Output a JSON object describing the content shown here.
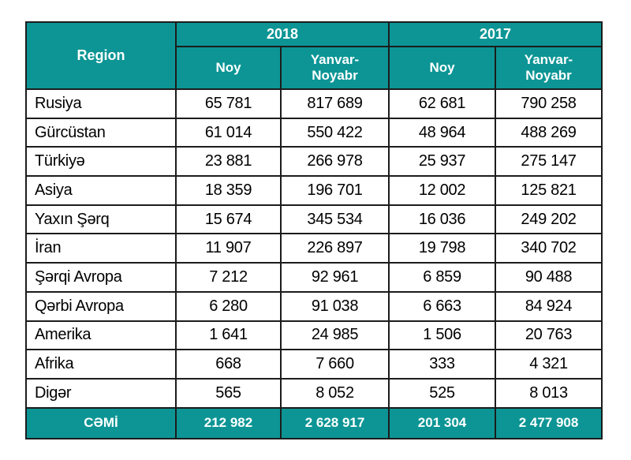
{
  "colors": {
    "header_bg": "#0D9595",
    "header_text": "#FFFFFF",
    "border": "#1C1C1C",
    "body_text": "#000000",
    "page_bg": "#FFFFFF"
  },
  "table": {
    "region_label": "Region",
    "year_groups": [
      {
        "year": "2018",
        "columns": [
          "Noy",
          "Yanvar-Noyabr"
        ]
      },
      {
        "year": "2017",
        "columns": [
          "Noy",
          "Yanvar-Noyabr"
        ]
      }
    ],
    "rows": [
      {
        "region": "Rusiya",
        "values": [
          "65 781",
          "817 689",
          "62 681",
          "790 258"
        ]
      },
      {
        "region": "Gürcüstan",
        "values": [
          "61 014",
          "550 422",
          "48 964",
          "488 269"
        ]
      },
      {
        "region": "Türkiyə",
        "values": [
          "23 881",
          "266 978",
          "25 937",
          "275 147"
        ]
      },
      {
        "region": "Asiya",
        "values": [
          "18 359",
          "196 701",
          "12 002",
          "125 821"
        ]
      },
      {
        "region": "Yaxın Şərq",
        "values": [
          "15 674",
          "345 534",
          "16 036",
          "249 202"
        ]
      },
      {
        "region": "İran",
        "values": [
          "11 907",
          "226 897",
          "19 798",
          "340 702"
        ]
      },
      {
        "region": "Şərqi Avropa",
        "values": [
          "7 212",
          "92 961",
          "6 859",
          "90 488"
        ]
      },
      {
        "region": "Qərbi Avropa",
        "values": [
          "6 280",
          "91 038",
          "6 663",
          "84 924"
        ]
      },
      {
        "region": "Amerika",
        "values": [
          "1 641",
          "24 985",
          "1 506",
          "20 763"
        ]
      },
      {
        "region": "Afrika",
        "values": [
          "668",
          "7 660",
          "333",
          "4 321"
        ]
      },
      {
        "region": "Digər",
        "values": [
          "565",
          "8 052",
          "525",
          "8 013"
        ]
      }
    ],
    "footer": {
      "label": "CƏMİ",
      "values": [
        "212 982",
        "2 628 917",
        "201 304",
        "2 477 908"
      ]
    }
  },
  "chart_data": {
    "type": "table",
    "title": "",
    "column_groups": [
      "2018",
      "2017"
    ],
    "columns": [
      "Region",
      "2018 Noy",
      "2018 Yanvar-Noyabr",
      "2017 Noy",
      "2017 Yanvar-Noyabr"
    ],
    "rows": [
      [
        "Rusiya",
        65781,
        817689,
        62681,
        790258
      ],
      [
        "Gürcüstan",
        61014,
        550422,
        48964,
        488269
      ],
      [
        "Türkiyə",
        23881,
        266978,
        25937,
        275147
      ],
      [
        "Asiya",
        18359,
        196701,
        12002,
        125821
      ],
      [
        "Yaxın Şərq",
        15674,
        345534,
        16036,
        249202
      ],
      [
        "İran",
        11907,
        226897,
        19798,
        340702
      ],
      [
        "Şərqi Avropa",
        7212,
        92961,
        6859,
        90488
      ],
      [
        "Qərbi Avropa",
        6280,
        91038,
        6663,
        84924
      ],
      [
        "Amerika",
        1641,
        24985,
        1506,
        20763
      ],
      [
        "Afrika",
        668,
        7660,
        333,
        4321
      ],
      [
        "Digər",
        565,
        8052,
        525,
        8013
      ]
    ],
    "totals": [
      "CƏMİ",
      212982,
      2628917,
      201304,
      2477908
    ]
  }
}
